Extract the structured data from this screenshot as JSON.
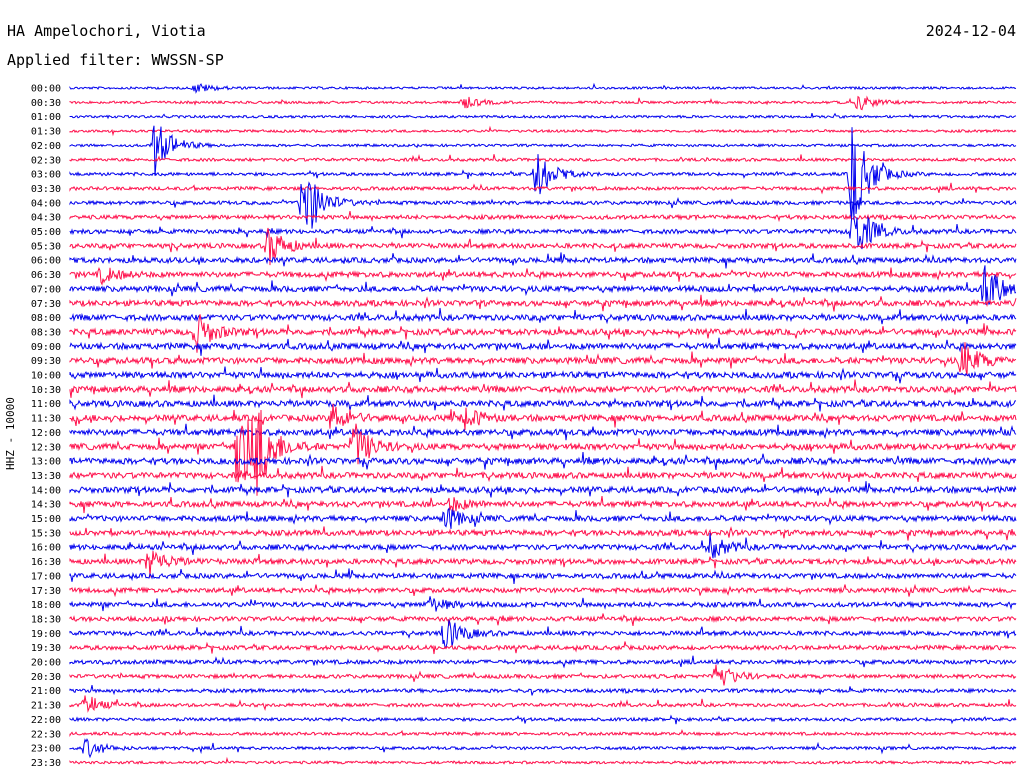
{
  "header": {
    "station": "HA Ampelochori, Viotia",
    "date": "2024-12-04",
    "filter": "Applied filter: WWSSN-SP",
    "channel_label": "HHZ - 10000"
  },
  "colors": {
    "line_a": "#0000ee",
    "line_b": "#ff0f4b"
  },
  "chart_data": {
    "type": "line",
    "title": "HA Ampelochori, Viotia",
    "subtitle": "Applied filter: WWSSN-SP",
    "ylabel": "HHZ - 10000",
    "xlabel": "",
    "grid": false,
    "row_tick_labels": [
      "00:00",
      "00:30",
      "01:00",
      "01:30",
      "02:00",
      "02:30",
      "03:00",
      "03:30",
      "04:00",
      "04:30",
      "05:00",
      "05:30",
      "06:00",
      "06:30",
      "07:00",
      "07:30",
      "08:00",
      "08:30",
      "09:00",
      "09:30",
      "10:00",
      "10:30",
      "11:00",
      "11:30",
      "12:00",
      "12:30",
      "13:00",
      "13:30",
      "14:00",
      "14:30",
      "15:00",
      "15:30",
      "16:00",
      "16:30",
      "17:00",
      "17:30",
      "18:00",
      "18:30",
      "19:00",
      "19:30",
      "20:00",
      "20:30",
      "21:00",
      "21:30",
      "22:00",
      "22:30",
      "23:00",
      "23:30"
    ],
    "row_minutes": 30,
    "noise_level": [
      0.15,
      0.2,
      0.2,
      0.2,
      0.2,
      0.3,
      0.35,
      0.4,
      0.45,
      0.55,
      0.6,
      0.7,
      0.8,
      0.85,
      0.9,
      0.9,
      0.95,
      0.95,
      1,
      1,
      1,
      1,
      1,
      1,
      1,
      1,
      1,
      0.95,
      0.95,
      0.9,
      0.85,
      0.85,
      0.8,
      0.8,
      0.75,
      0.7,
      0.7,
      0.65,
      0.6,
      0.6,
      0.55,
      0.5,
      0.45,
      0.4,
      0.35,
      0.3,
      0.3,
      0.25
    ],
    "events": [
      {
        "row": 0,
        "minute": 4.0,
        "amp": 5
      },
      {
        "row": 1,
        "minute": 12.5,
        "amp": 6
      },
      {
        "row": 1,
        "minute": 25.0,
        "amp": 8
      },
      {
        "row": 4,
        "minute": 2.7,
        "amp": 30
      },
      {
        "row": 6,
        "minute": 14.8,
        "amp": 25
      },
      {
        "row": 6,
        "minute": 24.8,
        "amp": 60
      },
      {
        "row": 8,
        "minute": 7.4,
        "amp": 45
      },
      {
        "row": 10,
        "minute": 24.8,
        "amp": 35
      },
      {
        "row": 11,
        "minute": 6.3,
        "amp": 20
      },
      {
        "row": 13,
        "minute": 1.0,
        "amp": 8
      },
      {
        "row": 14,
        "minute": 29.0,
        "amp": 28
      },
      {
        "row": 17,
        "minute": 4.0,
        "amp": 20
      },
      {
        "row": 19,
        "minute": 28.3,
        "amp": 20
      },
      {
        "row": 23,
        "minute": 8.3,
        "amp": 15
      },
      {
        "row": 23,
        "minute": 12.5,
        "amp": 12
      },
      {
        "row": 25,
        "minute": 5.9,
        "amp": 40
      },
      {
        "row": 25,
        "minute": 5.3,
        "amp": 55
      },
      {
        "row": 25,
        "minute": 9.0,
        "amp": 25
      },
      {
        "row": 29,
        "minute": 12.0,
        "amp": 8
      },
      {
        "row": 30,
        "minute": 11.9,
        "amp": 12
      },
      {
        "row": 32,
        "minute": 20.3,
        "amp": 12
      },
      {
        "row": 33,
        "minute": 2.5,
        "amp": 15
      },
      {
        "row": 36,
        "minute": 11.4,
        "amp": 8
      },
      {
        "row": 38,
        "minute": 11.9,
        "amp": 18
      },
      {
        "row": 41,
        "minute": 20.5,
        "amp": 15
      },
      {
        "row": 43,
        "minute": 0.5,
        "amp": 10
      },
      {
        "row": 46,
        "minute": 0.5,
        "amp": 10
      }
    ]
  }
}
